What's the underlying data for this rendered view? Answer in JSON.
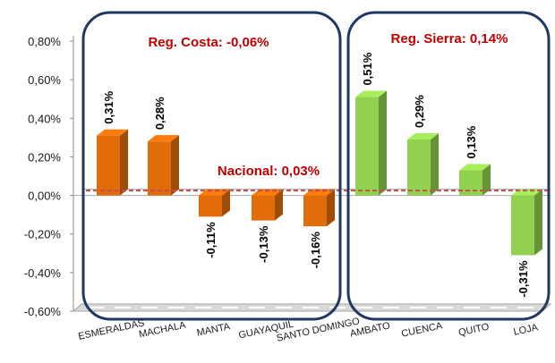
{
  "chart_data": {
    "type": "bar",
    "title": "",
    "xlabel": "",
    "ylabel": "",
    "ylim": [
      -0.6,
      0.8
    ],
    "yticks": [
      "-0,60%",
      "-0,40%",
      "-0,20%",
      "0,00%",
      "0,20%",
      "0,40%",
      "0,60%",
      "0,80%"
    ],
    "categories": [
      "ESMERALDAS",
      "MACHALA",
      "MANTA",
      "GUAYAQUIL",
      "SANTO DOMINGO",
      "AMBATO",
      "CUENCA",
      "QUITO",
      "LOJA"
    ],
    "values": [
      0.31,
      0.28,
      -0.11,
      -0.13,
      -0.16,
      0.51,
      0.29,
      0.13,
      -0.31
    ],
    "labels": [
      "0,31%",
      "0,28%",
      "-0,11%",
      "-0,13%",
      "-0,16%",
      "0,51%",
      "0,29%",
      "0,13%",
      "-0,31%"
    ],
    "region_of_category": [
      "costa",
      "costa",
      "costa",
      "costa",
      "costa",
      "sierra",
      "sierra",
      "sierra",
      "sierra"
    ],
    "regions": {
      "costa": {
        "label": "Reg. Costa: -0,06%",
        "color": "#e36c0a"
      },
      "sierra": {
        "label": "Reg. Sierra: 0,14%",
        "color": "#92d050"
      }
    },
    "reference_line": {
      "label": "Nacional: 0,03%",
      "value": 0.03,
      "color": "#c0504d"
    },
    "grid": false,
    "style": "3d-columns"
  }
}
